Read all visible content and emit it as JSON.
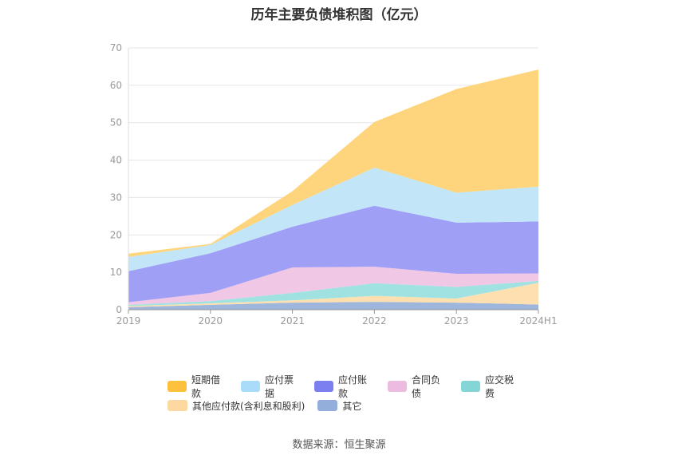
{
  "chart_data": {
    "type": "area",
    "stacked": true,
    "title": "历年主要负债堆积图（亿元）",
    "categories": [
      "2019",
      "2020",
      "2021",
      "2022",
      "2023",
      "2024H1"
    ],
    "ylim": [
      0,
      70
    ],
    "yticks": [
      "0",
      "10",
      "20",
      "30",
      "40",
      "50",
      "60",
      "70"
    ],
    "grid": true,
    "legend_position": "bottom",
    "series": [
      {
        "name": "其它",
        "color": "#9fb6dc",
        "values": [
          0.7,
          1.3,
          1.9,
          2.1,
          1.9,
          1.4
        ]
      },
      {
        "name": "其他应付款(含利息和股利)",
        "color": "#fee0b0",
        "values": [
          0.3,
          0.4,
          0.6,
          1.6,
          1.1,
          5.8
        ]
      },
      {
        "name": "应交税费",
        "color": "#a0e2e2",
        "values": [
          0.3,
          0.6,
          2.0,
          3.4,
          3.1,
          0.5
        ]
      },
      {
        "name": "合同负债",
        "color": "#f0c8e6",
        "values": [
          0.7,
          2.2,
          6.8,
          4.4,
          3.5,
          2.0
        ]
      },
      {
        "name": "应付账款",
        "color": "#9f9ff6",
        "values": [
          8.3,
          10.6,
          10.9,
          16.3,
          13.7,
          13.9
        ]
      },
      {
        "name": "应付票据",
        "color": "#c2e6f8",
        "values": [
          3.8,
          2.2,
          5.8,
          10.2,
          8.0,
          9.3
        ]
      },
      {
        "name": "短期借款",
        "color": "#fed57d",
        "values": [
          0.9,
          0.3,
          3.7,
          12.2,
          27.7,
          31.3
        ]
      }
    ]
  },
  "legend": {
    "rows": [
      [
        {
          "label": "短期借款",
          "color": "#fdc13d"
        },
        {
          "label": "应付票据",
          "color": "#a9dcf8"
        },
        {
          "label": "应付账款",
          "color": "#7b7ff0"
        },
        {
          "label": "合同负债",
          "color": "#eebbe0"
        },
        {
          "label": "应交税费",
          "color": "#84d6d6"
        }
      ],
      [
        {
          "label": "其他应付款(含利息和股利)",
          "color": "#fdd8a0"
        },
        {
          "label": "其它",
          "color": "#93aedb"
        }
      ]
    ]
  },
  "source": "数据来源：恒生聚源"
}
